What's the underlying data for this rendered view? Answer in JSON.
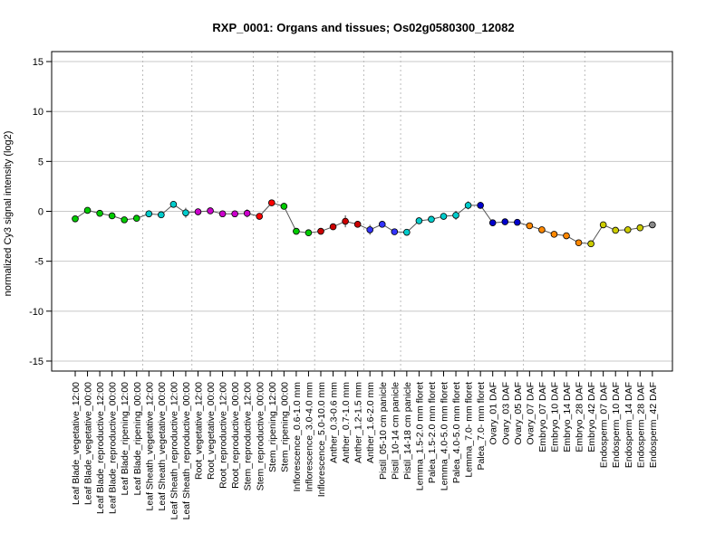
{
  "chart_data": {
    "type": "line",
    "title": "RXP_0001: Organs and tissues; Os02g0580300_12082",
    "xlabel": "",
    "ylabel": "normalized Cy3 signal intensity (log2)",
    "ylim": [
      -16,
      16
    ],
    "yticks": [
      -15,
      -10,
      -5,
      0,
      5,
      10,
      15
    ],
    "ytick_labels": [
      "-15",
      "-10",
      "-5",
      "0",
      "5",
      "10",
      "15"
    ],
    "grid": "horizontal at y ticks; dotted vertical separators between sample groups",
    "groups": [
      {
        "color": "#00cc00",
        "start": 0,
        "end": 5
      },
      {
        "color": "#00cccc",
        "start": 6,
        "end": 9
      },
      {
        "color": "#cc00cc",
        "start": 10,
        "end": 14
      },
      {
        "color": "#ff0000",
        "start": 15,
        "end": 16
      },
      {
        "color": "#00cc00",
        "start": 17,
        "end": 19
      },
      {
        "color": "#cc0000",
        "start": 20,
        "end": 23
      },
      {
        "color": "#3333ff",
        "start": 24,
        "end": 26
      },
      {
        "color": "#00cccc",
        "start": 27,
        "end": 32
      },
      {
        "color": "#0000cc",
        "start": 33,
        "end": 36
      },
      {
        "color": "#ff8800",
        "start": 37,
        "end": 41
      },
      {
        "color": "#cccc00",
        "start": 42,
        "end": 46
      }
    ],
    "categories": [
      "Leaf Blade_vegetative_12:00",
      "Leaf Blade_vegetative_00:00",
      "Leaf Blade_reproductive_12:00",
      "Leaf Blade_reproductive_00:00",
      "Leaf Blade_ripening_12:00",
      "Leaf Blade_ripening_00:00",
      "Leaf Sheath_vegetative_12:00",
      "Leaf Sheath_vegetative_00:00",
      "Leaf Sheath_reproductive_12:00",
      "Leaf Sheath_reproductive_00:00",
      "Root_vegetative_12:00",
      "Root_vegetative_00:00",
      "Root_reproductive_12:00",
      "Root_reproductive_00:00",
      "Stem_reproductive_12:00",
      "Stem_reproductive_00:00",
      "Stem_ripening_12:00",
      "Stem_ripening_00:00",
      "Inflorescence_0.6-1.0 mm",
      "Inflorescence_3.0-4.0 mm",
      "Inflorescence_5.0-10.0 mm",
      "Anther_0.3-0.6 mm",
      "Anther_0.7-1.0 mm",
      "Anther_1.2-1.5 mm",
      "Anther_1.6-2.0 mm",
      "Pistil_05-10 cm panicle",
      "Pistil_10-14 cm panicle",
      "Pistil_14-18 cm panicle",
      "Lemma_1.5-2.0 mm floret",
      "Palea_1.5-2.0 mm floret",
      "Lemma_4.0-5.0 mm floret",
      "Palea_4.0-5.0 mm floret",
      "Lemma_7.0- mm floret",
      "Palea_7.0- mm floret",
      "Ovary_01 DAF",
      "Ovary_03 DAF",
      "Ovary_05 DAF",
      "Ovary_07 DAF",
      "Embryo_07 DAF",
      "Embryo_10 DAF",
      "Embryo_14 DAF",
      "Embryo_28 DAF",
      "Embryo_42 DAF",
      "Endosperm_07 DAF",
      "Endosperm_10 DAF",
      "Endosperm_14 DAF",
      "Endosperm_28 DAF",
      "Endosperm_42 DAF"
    ],
    "series": [
      {
        "values": [
          -0.75,
          0.1,
          -0.2,
          -0.45,
          -0.85,
          -0.7,
          -0.25,
          -0.35,
          0.7,
          -0.15,
          -0.05,
          0.05,
          -0.25,
          -0.25,
          -0.2,
          -0.5,
          0.85,
          0.5,
          -2.0,
          -2.15,
          -2.0,
          -1.55,
          -1.0,
          -1.3,
          -1.85,
          -1.3,
          -2.05,
          -2.1,
          -0.95,
          -0.8,
          -0.5,
          -0.4,
          0.6,
          0.6,
          -1.15,
          -1.05,
          -1.1,
          -1.45,
          -1.85,
          -2.3,
          -2.45,
          -3.15,
          -3.25,
          -1.35,
          -1.9,
          -1.85,
          -1.65,
          -1.35
        ],
        "errors": [
          0.1,
          0.15,
          0.1,
          0.2,
          0.15,
          0.15,
          0.35,
          0.2,
          0.15,
          0.5,
          0.2,
          0.15,
          0.3,
          0.3,
          0.4,
          0.25,
          0.15,
          0.1,
          0.15,
          0.1,
          0.2,
          0.15,
          0.6,
          0.2,
          0.5,
          0.15,
          0.1,
          0.1,
          0.15,
          0.15,
          0.25,
          0.45,
          0.4,
          0.35,
          0.15,
          0.1,
          0.15,
          0.1,
          0.15,
          0.2,
          0.2,
          0.15,
          0.15,
          0.15,
          0.1,
          0.1,
          0.1,
          0.1
        ]
      }
    ]
  }
}
